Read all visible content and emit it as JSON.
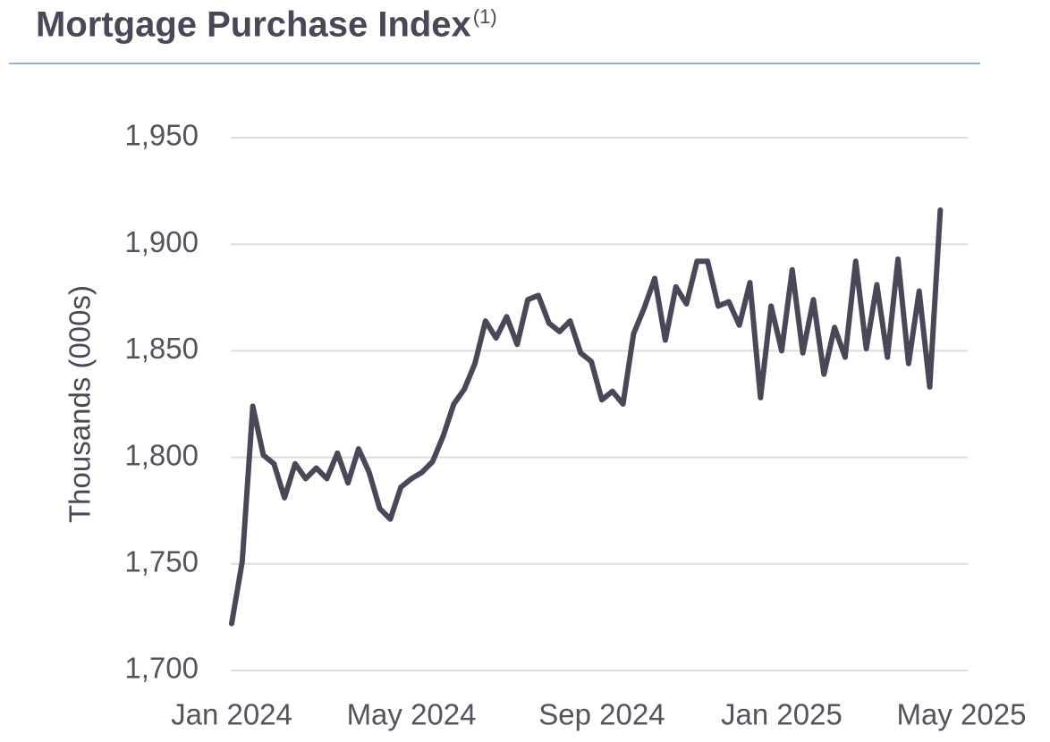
{
  "chart_data": {
    "type": "line",
    "title": "Mortgage Purchase Index",
    "title_superscript": "(1)",
    "y_label": "Thousands (000s)",
    "categories": [
      "Jan 2024",
      null,
      null,
      null,
      null,
      null,
      null,
      null,
      null,
      null,
      null,
      null,
      null,
      null,
      null,
      null,
      null,
      "May 2024",
      null,
      null,
      null,
      null,
      null,
      null,
      null,
      null,
      null,
      null,
      null,
      null,
      null,
      null,
      null,
      null,
      null,
      "Sep 2024",
      null,
      null,
      null,
      null,
      null,
      null,
      null,
      null,
      null,
      null,
      null,
      null,
      null,
      null,
      null,
      null,
      "Jan 2025",
      null,
      null,
      null,
      null,
      null,
      null,
      null,
      null,
      null,
      null,
      null,
      null,
      null,
      null,
      null,
      null,
      "May 2025"
    ],
    "series": [
      {
        "name": "Mortgage Purchase Index",
        "color": "#4a4858",
        "values": [
          1722,
          1751,
          1824,
          1801,
          1797,
          1781,
          1797,
          1790,
          1795,
          1790,
          1802,
          1788,
          1804,
          1793,
          1776,
          1771,
          1786,
          1790,
          1793,
          1798,
          1810,
          1825,
          1832,
          1844,
          1864,
          1856,
          1866,
          1853,
          1874,
          1876,
          1863,
          1859,
          1864,
          1849,
          1845,
          1827,
          1831,
          1825,
          1858,
          1870,
          1884,
          1855,
          1880,
          1872,
          1892,
          1892,
          1871,
          1873,
          1862,
          1882,
          1828,
          1871,
          1850,
          1888,
          1849,
          1874,
          1839,
          1861,
          1847,
          1892,
          1851,
          1881,
          1847,
          1893,
          1844,
          1878,
          1833,
          1916,
          null,
          null
        ]
      }
    ],
    "ylim": [
      1700,
      1950
    ],
    "yticks": [
      {
        "value": 1700,
        "label": "1,700"
      },
      {
        "value": 1750,
        "label": "1,750"
      },
      {
        "value": 1800,
        "label": "1,800"
      },
      {
        "value": 1850,
        "label": "1,850"
      },
      {
        "value": 1900,
        "label": "1,900"
      },
      {
        "value": 1950,
        "label": "1,950"
      }
    ],
    "grid": true
  }
}
